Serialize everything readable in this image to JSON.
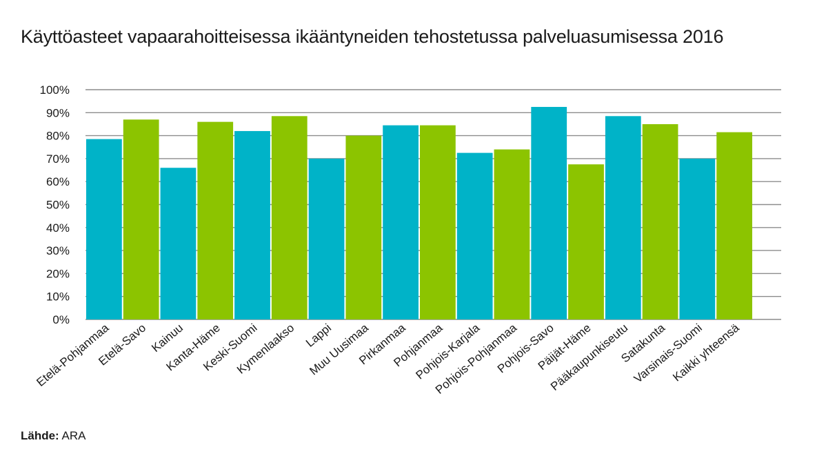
{
  "chart_data": {
    "type": "bar",
    "title": "Käyttöasteet vapaarahoitteisessa ikääntyneiden tehostetussa palveluasumisessa 2016",
    "xlabel": "",
    "ylabel": "",
    "ylim": [
      0,
      100
    ],
    "ytick_values": [
      0,
      10,
      20,
      30,
      40,
      50,
      60,
      70,
      80,
      90,
      100
    ],
    "yticks": [
      "0%",
      "10%",
      "20%",
      "30%",
      "40%",
      "50%",
      "60%",
      "70%",
      "80%",
      "90%",
      "100%"
    ],
    "grid": true,
    "categories": [
      "Etelä-Pohjanmaa",
      "Etelä-Savo",
      "Kainuu",
      "Kanta-Häme",
      "Keski-Suomi",
      "Kymenlaakso",
      "Lappi",
      "Muu Uusimaa",
      "Pirkanmaa",
      "Pohjanmaa",
      "Pohjois-Karjala",
      "Pohjois-Pohjanmaa",
      "Pohjois-Savo",
      "Päijät-Häme",
      "Pääkaupunkiseutu",
      "Satakunta",
      "Varsinais-Suomi",
      "Kaikki yhteensä"
    ],
    "values": [
      78.5,
      87,
      66,
      86,
      82,
      88.5,
      70,
      80,
      84.5,
      84.5,
      72.5,
      74,
      92.5,
      67.5,
      88.5,
      85,
      70,
      81.5
    ],
    "colors": [
      "#00b3c8",
      "#8cc400",
      "#00b3c8",
      "#8cc400",
      "#00b3c8",
      "#8cc400",
      "#00b3c8",
      "#8cc400",
      "#00b3c8",
      "#8cc400",
      "#00b3c8",
      "#8cc400",
      "#00b3c8",
      "#8cc400",
      "#00b3c8",
      "#8cc400",
      "#00b3c8",
      "#8cc400"
    ]
  },
  "source": {
    "label": "Lähde:",
    "value": "ARA"
  }
}
